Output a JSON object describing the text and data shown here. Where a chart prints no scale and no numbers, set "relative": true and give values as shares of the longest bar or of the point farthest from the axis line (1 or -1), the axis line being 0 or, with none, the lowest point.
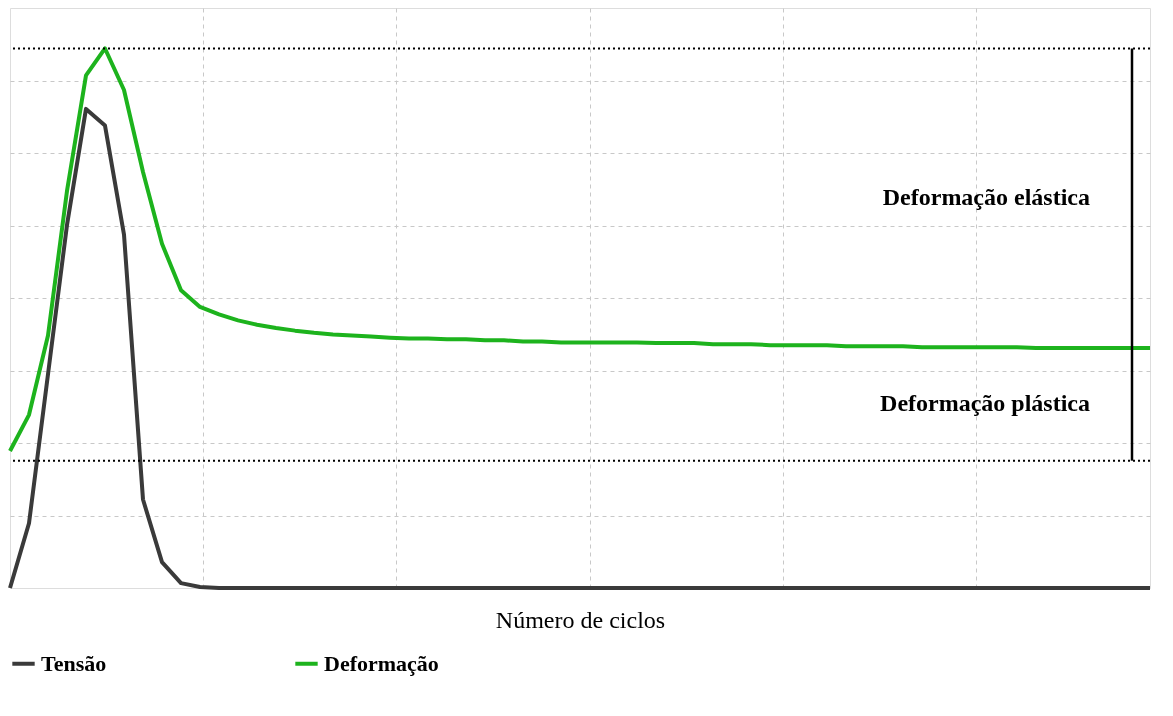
{
  "chart_data": {
    "type": "line",
    "relative": true,
    "xlabel": "Número de ciclos",
    "categories": [
      null,
      null,
      null,
      null,
      null,
      null,
      null,
      null,
      null,
      null,
      null,
      null,
      null,
      null,
      null,
      null,
      null,
      null,
      null,
      null,
      null,
      null,
      null,
      null,
      null,
      null,
      null,
      null,
      null,
      null,
      null,
      null,
      null,
      null,
      null,
      null,
      null,
      null,
      null,
      null,
      null,
      null,
      null,
      null,
      null,
      null,
      null,
      null,
      null,
      null,
      null,
      null,
      null,
      null,
      null,
      null,
      null,
      null,
      null,
      null,
      null
    ],
    "series": [
      {
        "name": "Tensão",
        "color": "#3a3a3a",
        "values": [
          0,
          0.12,
          0.396,
          0.673,
          0.888,
          0.857,
          0.655,
          0.164,
          0.048,
          0.009,
          0.002,
          0,
          0,
          0,
          0,
          0,
          0,
          0,
          0,
          0,
          0,
          0,
          0,
          0,
          0,
          0,
          0,
          0,
          0,
          0,
          0,
          0,
          0,
          0,
          0,
          0,
          0,
          0,
          0,
          0,
          0,
          0,
          0,
          0,
          0,
          0,
          0,
          0,
          0,
          0,
          0,
          0,
          0,
          0,
          0,
          0,
          0,
          0,
          0,
          0,
          0
        ]
      },
      {
        "name": "Deformação",
        "color": "#1db31d",
        "values": [
          0.254,
          0.321,
          0.468,
          0.736,
          0.95,
          1.0,
          0.923,
          0.771,
          0.638,
          0.552,
          0.521,
          0.507,
          0.496,
          0.488,
          0.482,
          0.477,
          0.473,
          0.47,
          0.468,
          0.466,
          0.464,
          0.4625,
          0.4625,
          0.461,
          0.461,
          0.459,
          0.459,
          0.457,
          0.457,
          0.455,
          0.455,
          0.455,
          0.455,
          0.455,
          0.454,
          0.454,
          0.454,
          0.452,
          0.452,
          0.452,
          0.45,
          0.45,
          0.45,
          0.45,
          0.448,
          0.448,
          0.448,
          0.448,
          0.446,
          0.446,
          0.446,
          0.446,
          0.446,
          0.446,
          0.445,
          0.445,
          0.445,
          0.445,
          0.445,
          0.445,
          0.445
        ]
      }
    ],
    "ref_lines": [
      {
        "axis": "y",
        "value": 1.0,
        "color": "#000000",
        "line_style": "dotted"
      },
      {
        "axis": "y",
        "value": 0.236,
        "color": "#000000",
        "line_style": "dotted"
      }
    ],
    "annotations": [
      "Deformação elástica",
      "Deformação plástica"
    ],
    "grid": true,
    "legend": "bottom",
    "line_style": "solid",
    "marker": "none",
    "tick_labels": false
  }
}
